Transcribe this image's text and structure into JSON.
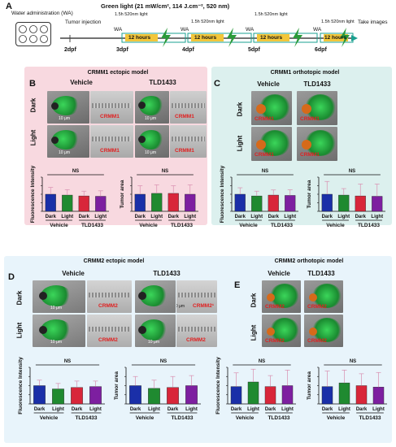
{
  "panel_a": {
    "label": "A",
    "water": "Water administration (WA)",
    "light_header": "Green light (21 mW/cm², 114 J.cm⁻², 520 nm)",
    "tumor_injection": "Tumor injection",
    "take_images": "Take images",
    "wa": "WA",
    "light_step": "1.5h 520nm light",
    "light_step_first": "1.5h 520nm light",
    "hours": "12 hours",
    "days": [
      "2dpf",
      "3dpf",
      "4dpf",
      "5dpf",
      "6dpf"
    ]
  },
  "panel_b": {
    "label": "B",
    "title": "CRMM1 ectopic model",
    "col1": "Vehicle",
    "col2": "TLD1433",
    "row1": "Dark",
    "row2": "Light",
    "tumor": "CRMM1",
    "scale": "10 μm"
  },
  "panel_c": {
    "label": "C",
    "title": "CRMM1 orthotopic model",
    "col1": "Vehicle",
    "col2": "TLD1433",
    "row1": "Dark",
    "row2": "Light",
    "tumor": "CRMM1"
  },
  "panel_d": {
    "label": "D",
    "title": "CRMM2 ectopic model",
    "col1": "Vehicle",
    "col2": "TLD1433",
    "row1": "Dark",
    "row2": "Light",
    "tumor": "CRMM2",
    "tumor_alt": "CRMM2¹",
    "scale": "10 μm"
  },
  "panel_e": {
    "label": "E",
    "title": "CRMM2 orthotopic model",
    "col1": "Vehicle",
    "col2": "TLD1433",
    "row1": "Dark",
    "row2": "Light",
    "tumor": "CRMM2"
  },
  "colors": {
    "dark": "#1a2fa8",
    "light": "#1f8a30",
    "tld_dark": "#d8263a",
    "tld_light": "#7d1fa0",
    "bg_pink": "#f8d9e0",
    "bg_teal": "#dcf0ee",
    "bg_blue": "#e8f4fb",
    "error": "#d98fb0"
  },
  "chart_data": [
    {
      "id": "B1",
      "type": "bar",
      "ylabel": "Fluorescence Intensity",
      "sig": "NS",
      "ylim": [
        0,
        2.0
      ],
      "yticks": [
        "0.0",
        "0.5",
        "1.0",
        "1.5",
        "2.0"
      ],
      "categories": [
        "Dark",
        "Light",
        "Dark",
        "Light"
      ],
      "groups": [
        "Vehicle",
        "TLD1433"
      ],
      "values": [
        1.0,
        0.95,
        0.9,
        0.88
      ],
      "errors": [
        0.4,
        0.32,
        0.28,
        0.32
      ]
    },
    {
      "id": "B2",
      "type": "bar",
      "ylabel": "Tumor area",
      "sig": "NS",
      "ylim": [
        0,
        2.0
      ],
      "yticks": [
        "0.0",
        "0.5",
        "1.0",
        "1.5",
        "2.0"
      ],
      "categories": [
        "Dark",
        "Light",
        "Dark",
        "Light"
      ],
      "groups": [
        "Vehicle",
        "TLD1433"
      ],
      "values": [
        1.0,
        1.05,
        1.05,
        1.0
      ],
      "errors": [
        0.5,
        0.5,
        0.45,
        0.55
      ]
    },
    {
      "id": "C1",
      "type": "bar",
      "ylabel": "Fluorescence Intensity",
      "sig": "NS",
      "ylim": [
        0,
        2.0
      ],
      "yticks": [
        "0.0",
        "0.5",
        "1.0",
        "1.5",
        "2.0"
      ],
      "categories": [
        "Dark",
        "Light",
        "Dark",
        "Light"
      ],
      "groups": [
        "Vehicle",
        "TLD1433"
      ],
      "values": [
        1.0,
        0.9,
        0.95,
        0.93
      ],
      "errors": [
        0.38,
        0.28,
        0.3,
        0.33
      ]
    },
    {
      "id": "C2",
      "type": "bar",
      "ylabel": "Tumor area",
      "sig": "NS",
      "ylim": [
        0,
        2.0
      ],
      "yticks": [
        "0.0",
        "0.5",
        "1.0",
        "1.5",
        "2.0"
      ],
      "categories": [
        "Dark",
        "Light",
        "Dark",
        "Light"
      ],
      "groups": [
        "Vehicle",
        "TLD1433"
      ],
      "values": [
        1.0,
        0.95,
        0.9,
        0.88
      ],
      "errors": [
        0.75,
        0.38,
        0.7,
        0.72
      ]
    },
    {
      "id": "D1",
      "type": "bar",
      "ylabel": "Fluorescence Intensity",
      "sig": "NS",
      "ylim": [
        0,
        2.0
      ],
      "yticks": [
        "0.0",
        "0.5",
        "1.0",
        "1.5",
        "2.0"
      ],
      "categories": [
        "Dark",
        "Light",
        "Dark",
        "Light"
      ],
      "groups": [
        "Vehicle",
        "TLD1433"
      ],
      "values": [
        1.0,
        0.82,
        0.9,
        0.95
      ],
      "errors": [
        0.3,
        0.3,
        0.35,
        0.3
      ]
    },
    {
      "id": "D2",
      "type": "bar",
      "ylabel": "Tumor area",
      "sig": "NS",
      "ylim": [
        0,
        2.0
      ],
      "yticks": [
        "0.0",
        "0.5",
        "1.0",
        "1.5",
        "2.0"
      ],
      "categories": [
        "Dark",
        "Light",
        "Dark",
        "Light"
      ],
      "groups": [
        "Vehicle",
        "TLD1433"
      ],
      "values": [
        1.0,
        0.85,
        0.9,
        1.0
      ],
      "errors": [
        0.5,
        0.45,
        0.6,
        0.55
      ]
    },
    {
      "id": "E1",
      "type": "bar",
      "ylabel": "Fluorescence Intensity",
      "sig": "NS",
      "ylim": [
        0,
        2.0
      ],
      "yticks": [
        "0.0",
        "0.5",
        "1.0",
        "1.5",
        "2.0"
      ],
      "categories": [
        "Dark",
        "Light",
        "Dark",
        "Light"
      ],
      "groups": [
        "Vehicle",
        "TLD1433"
      ],
      "values": [
        0.95,
        1.2,
        0.95,
        1.0
      ],
      "errors": [
        0.75,
        0.7,
        0.6,
        0.85
      ]
    },
    {
      "id": "E2",
      "type": "bar",
      "ylabel": "Tumor area",
      "sig": "NS",
      "ylim": [
        0,
        2.0
      ],
      "yticks": [
        "0.0",
        "0.5",
        "1.0",
        "1.5",
        "2.0"
      ],
      "categories": [
        "Dark",
        "Light",
        "Dark",
        "Light"
      ],
      "groups": [
        "Vehicle",
        "TLD1433"
      ],
      "values": [
        0.95,
        1.15,
        1.0,
        0.92
      ],
      "errors": [
        0.85,
        0.7,
        0.65,
        0.8
      ]
    }
  ]
}
